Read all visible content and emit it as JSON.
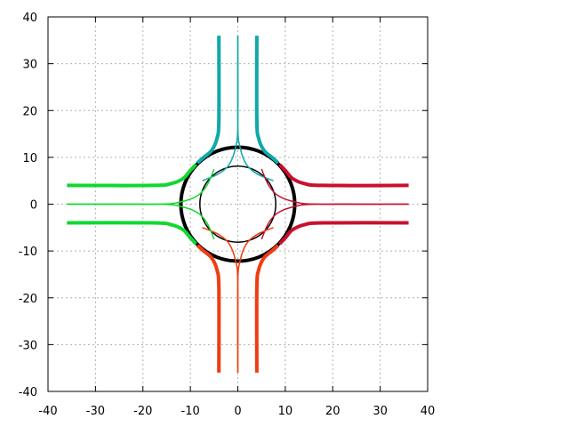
{
  "chart_data": {
    "type": "line",
    "title": "",
    "xlabel": "",
    "ylabel": "",
    "xlim": [
      -40,
      40
    ],
    "ylim": [
      -40,
      40
    ],
    "xticks": [
      -40,
      -30,
      -20,
      -10,
      0,
      10,
      20,
      30,
      40
    ],
    "yticks": [
      -40,
      -30,
      -20,
      -10,
      0,
      10,
      20,
      30,
      40
    ],
    "xtick_labels": [
      "-40",
      "-30",
      "-20",
      "-10",
      "0",
      "10",
      "20",
      "30",
      "40"
    ],
    "ytick_labels": [
      "-40",
      "-30",
      "-20",
      "-10",
      "0",
      "10",
      "20",
      "30",
      "40"
    ],
    "grid": true,
    "legend": "none",
    "colors": {
      "north": "#10a8a8",
      "east": "#c8102e",
      "south": "#f03c10",
      "west": "#10d830",
      "ring": "#000000",
      "grid": "#b0b0b0"
    },
    "series": [
      {
        "color_key": "ring",
        "shape": "circle",
        "cx": 0,
        "cy": 0,
        "r": 12,
        "weight": "heavy"
      },
      {
        "color_key": "ring",
        "shape": "circle",
        "cx": 0,
        "cy": 0,
        "r": 8,
        "weight": "thin"
      },
      {
        "color_key": "north",
        "weight": "heavy",
        "x": [
          -4,
          -4,
          -4.4,
          -5.5,
          -7.2,
          -8.5
        ],
        "y": [
          36,
          18,
          14,
          11.5,
          10,
          8.8
        ]
      },
      {
        "color_key": "north",
        "weight": "heavy",
        "x": [
          4,
          4,
          4.4,
          5.5,
          7.2,
          8.5
        ],
        "y": [
          36,
          18,
          14,
          11.5,
          10,
          8.8
        ]
      },
      {
        "color_key": "north",
        "weight": "thin",
        "x": [
          0,
          0,
          -0.5,
          -1.8,
          -4,
          -7.5
        ],
        "y": [
          36,
          17,
          12,
          8.5,
          6.5,
          5
        ]
      },
      {
        "color_key": "north",
        "weight": "thin",
        "x": [
          0,
          0,
          0.5,
          1.8,
          4,
          7.5
        ],
        "y": [
          36,
          17,
          12,
          8.5,
          6.5,
          5
        ]
      },
      {
        "color_key": "east",
        "weight": "heavy",
        "x": [
          36,
          18,
          14,
          11.5,
          10,
          8.8
        ],
        "y": [
          4,
          4,
          4.4,
          5.5,
          7.2,
          8.5
        ]
      },
      {
        "color_key": "east",
        "weight": "heavy",
        "x": [
          36,
          18,
          14,
          11.5,
          10,
          8.8
        ],
        "y": [
          -4,
          -4,
          -4.4,
          -5.5,
          -7.2,
          -8.5
        ]
      },
      {
        "color_key": "east",
        "weight": "thin",
        "x": [
          36,
          17,
          12,
          8.5,
          6.5,
          5
        ],
        "y": [
          0,
          0,
          0.5,
          1.8,
          4,
          7.5
        ]
      },
      {
        "color_key": "east",
        "weight": "thin",
        "x": [
          36,
          17,
          12,
          8.5,
          6.5,
          5
        ],
        "y": [
          0,
          0,
          -0.5,
          -1.8,
          -4,
          -7.5
        ]
      },
      {
        "color_key": "south",
        "weight": "heavy",
        "x": [
          -4,
          -4,
          -4.4,
          -5.5,
          -7.2,
          -8.5
        ],
        "y": [
          -36,
          -18,
          -14,
          -11.5,
          -10,
          -8.8
        ]
      },
      {
        "color_key": "south",
        "weight": "heavy",
        "x": [
          4,
          4,
          4.4,
          5.5,
          7.2,
          8.5
        ],
        "y": [
          -36,
          -18,
          -14,
          -11.5,
          -10,
          -8.8
        ]
      },
      {
        "color_key": "south",
        "weight": "thin",
        "x": [
          0,
          0,
          -0.5,
          -1.8,
          -4,
          -7.5
        ],
        "y": [
          -36,
          -17,
          -12,
          -8.5,
          -6.5,
          -5
        ]
      },
      {
        "color_key": "south",
        "weight": "thin",
        "x": [
          0,
          0,
          0.5,
          1.8,
          4,
          7.5
        ],
        "y": [
          -36,
          -17,
          -12,
          -8.5,
          -6.5,
          -5
        ]
      },
      {
        "color_key": "west",
        "weight": "heavy",
        "x": [
          -36,
          -18,
          -14,
          -11.5,
          -10,
          -8.8
        ],
        "y": [
          4,
          4,
          4.4,
          5.5,
          7.2,
          8.5
        ]
      },
      {
        "color_key": "west",
        "weight": "heavy",
        "x": [
          -36,
          -18,
          -14,
          -11.5,
          -10,
          -8.8
        ],
        "y": [
          -4,
          -4,
          -4.4,
          -5.5,
          -7.2,
          -8.5
        ]
      },
      {
        "color_key": "west",
        "weight": "thin",
        "x": [
          -36,
          -17,
          -12,
          -8.5,
          -6.5,
          -5
        ],
        "y": [
          0,
          0,
          0.5,
          1.8,
          4,
          7.5
        ]
      },
      {
        "color_key": "west",
        "weight": "thin",
        "x": [
          -36,
          -17,
          -12,
          -8.5,
          -6.5,
          -5
        ],
        "y": [
          0,
          0,
          -0.5,
          -1.8,
          -4,
          -7.5
        ]
      }
    ]
  }
}
